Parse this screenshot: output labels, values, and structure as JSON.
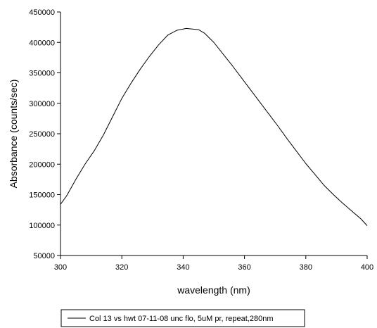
{
  "chart_data": {
    "type": "line",
    "xlabel": "wavelength (nm)",
    "ylabel": "Absorbance (counts/sec)",
    "xlim": [
      300,
      400
    ],
    "ylim": [
      50000,
      450000
    ],
    "x_ticks": [
      300,
      320,
      340,
      360,
      380,
      400
    ],
    "y_ticks": [
      50000,
      100000,
      150000,
      200000,
      250000,
      300000,
      350000,
      400000,
      450000
    ],
    "grid": false,
    "legend_position": "bottom",
    "series": [
      {
        "name": "Col 13 vs hwt 07-11-08 unc flo, 5uM pr, repeat,280nm",
        "x": [
          300,
          302,
          305,
          308,
          311,
          314,
          317,
          320,
          323,
          326,
          329,
          332,
          335,
          338,
          341,
          343,
          345,
          347,
          350,
          353,
          356,
          359,
          362,
          365,
          368,
          371,
          374,
          377,
          380,
          383,
          386,
          389,
          392,
          395,
          398,
          400
        ],
        "y": [
          134000,
          148000,
          175000,
          200000,
          222000,
          248000,
          278000,
          308000,
          333000,
          356000,
          377000,
          396000,
          412000,
          420000,
          423000,
          422000,
          421000,
          415000,
          400000,
          381000,
          362000,
          342000,
          322000,
          302000,
          282000,
          262000,
          241000,
          221000,
          201000,
          183000,
          165000,
          150000,
          136000,
          123000,
          110000,
          99000
        ]
      }
    ]
  }
}
